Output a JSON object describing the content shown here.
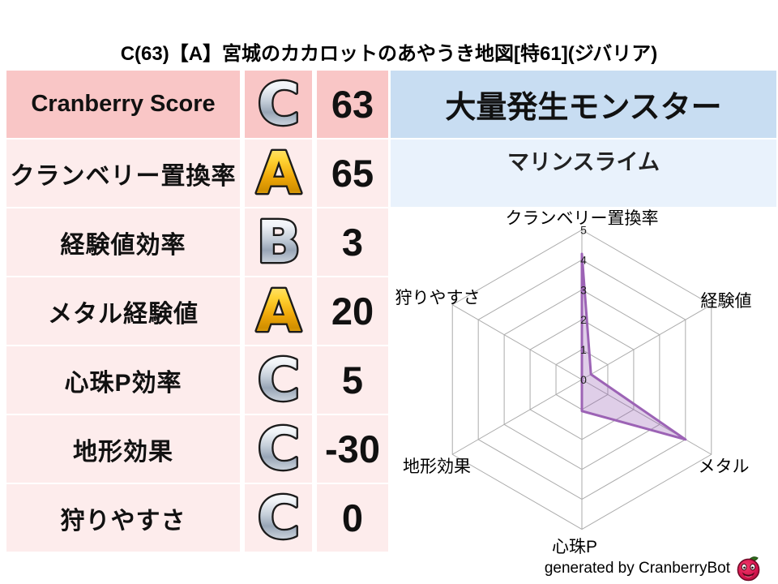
{
  "title": "C(63)【A】宮城のカカロットのあやうき地図[特61](ジバリア)",
  "table": {
    "rows": [
      {
        "label": "Cranberry Score",
        "grade": "C",
        "grade_color": "silver",
        "value": "63"
      },
      {
        "label": "クランベリー置換率",
        "grade": "A",
        "grade_color": "gold",
        "value": "65"
      },
      {
        "label": "経験値効率",
        "grade": "B",
        "grade_color": "silver",
        "value": "3"
      },
      {
        "label": "メタル経験値",
        "grade": "A",
        "grade_color": "gold",
        "value": "20"
      },
      {
        "label": "心珠P効率",
        "grade": "C",
        "grade_color": "silver",
        "value": "5"
      },
      {
        "label": "地形効果",
        "grade": "C",
        "grade_color": "silver",
        "value": "-30"
      },
      {
        "label": "狩りやすさ",
        "grade": "C",
        "grade_color": "silver",
        "value": "0"
      }
    ]
  },
  "monster_panel": {
    "header": "大量発生モンスター",
    "monster_name": "マリンスライム"
  },
  "chart_data": {
    "type": "radar",
    "categories": [
      "クランベリー置換率",
      "経験値",
      "メタル",
      "心珠P",
      "地形効果",
      "狩りやすさ"
    ],
    "values": [
      4.2,
      0.35,
      4.0,
      1.05,
      0,
      0
    ],
    "rmin": 0,
    "rmax": 5,
    "ticks": [
      0,
      1,
      2,
      3,
      4,
      5
    ],
    "grid": true,
    "legend": "none",
    "fill_color": "rgba(150,92,180,0.30)",
    "stroke_color": "#9c63b5",
    "grid_color": "#ababab"
  },
  "footer": {
    "credit": "generated by CranberryBot",
    "icon": "cranberry-slime-icon"
  },
  "colors": {
    "row_highlight": "#f9c6c6",
    "row_light": "#fdecec",
    "panel_header_blue": "#c8ddf2",
    "panel_light_blue": "#e9f2fc",
    "badge_gold": "#f0a90a",
    "badge_silver": "#c6cfda",
    "radar_stroke": "#9c63b5"
  }
}
